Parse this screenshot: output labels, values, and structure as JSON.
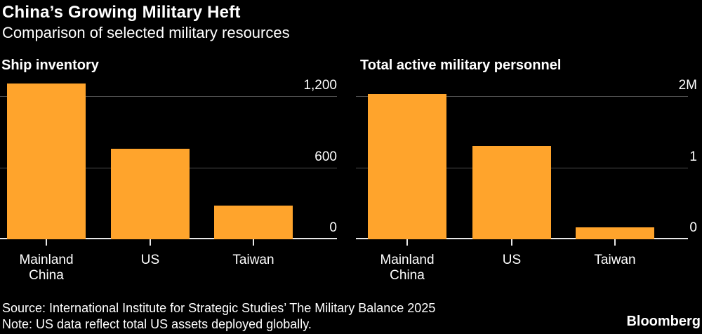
{
  "header": {
    "title": "China’s Growing Military Heft",
    "subtitle": "Comparison of selected military resources"
  },
  "chart_data": [
    {
      "type": "bar",
      "title": "Ship inventory",
      "categories": [
        "Mainland\nChina",
        "US",
        "Taiwan"
      ],
      "values": [
        1310,
        765,
        285
      ],
      "ylim": [
        0,
        1200
      ],
      "yticks": [
        {
          "label": "1,200",
          "value": 1200
        },
        {
          "label": "600",
          "value": 600
        },
        {
          "label": "0",
          "value": 0
        }
      ],
      "grid": "horizontal",
      "legend": "none"
    },
    {
      "type": "bar",
      "title": "Total active military personnel",
      "categories": [
        "Mainland\nChina",
        "US",
        "Taiwan"
      ],
      "values": [
        2.04,
        1.31,
        0.17
      ],
      "unit": "millions",
      "ylim": [
        0,
        2
      ],
      "yticks": [
        {
          "label": "2M",
          "value": 2
        },
        {
          "label": "1",
          "value": 1
        },
        {
          "label": "0",
          "value": 0
        }
      ],
      "grid": "horizontal",
      "legend": "none"
    }
  ],
  "footer": {
    "source": "Source: International Institute for Strategic Studies’ The Military Balance 2025",
    "note": "Note: US data reflect total US assets deployed globally.",
    "brand": "Bloomberg"
  },
  "colors": {
    "background": "#000000",
    "bar": "#FFA42C",
    "gridline": "#4d4d4d",
    "baseline": "#e8e8e8",
    "text": "#ffffff"
  }
}
